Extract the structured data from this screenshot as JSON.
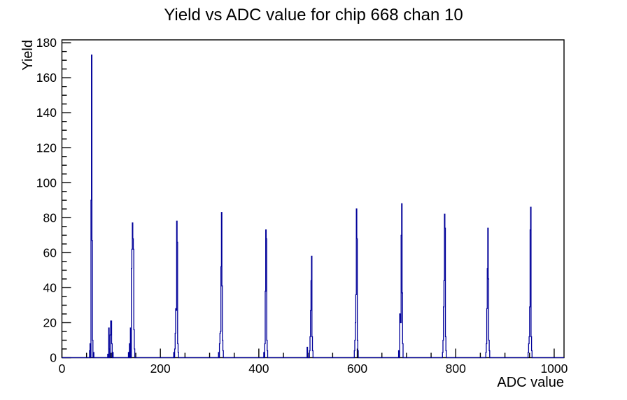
{
  "chart_data": {
    "type": "bar",
    "title": "Yield vs ADC value for chip 668 chan 10",
    "xlabel": "ADC value",
    "ylabel": "Yield",
    "xlim": [
      0,
      1020
    ],
    "ylim": [
      0,
      181.65
    ],
    "x_major_ticks": [
      0,
      200,
      400,
      600,
      800,
      1000
    ],
    "x_tick_labels": [
      "0",
      "200",
      "400",
      "600",
      "800",
      "1000"
    ],
    "x_minor_tick_step": 50,
    "y_major_ticks": [
      0,
      20,
      40,
      60,
      80,
      100,
      120,
      140,
      160,
      180
    ],
    "y_tick_labels": [
      "0",
      "20",
      "40",
      "60",
      "80",
      "100",
      "120",
      "140",
      "160",
      "180"
    ],
    "y_minor_tick_step": 5,
    "grid": false,
    "legend": false,
    "line_color": "#000099",
    "axis_color": "#000000",
    "bin_width": 1,
    "bins": [
      [
        56,
        4
      ],
      [
        57,
        8
      ],
      [
        59,
        90
      ],
      [
        60,
        173
      ],
      [
        61,
        67
      ],
      [
        62,
        10
      ],
      [
        64,
        3
      ],
      [
        93,
        2
      ],
      [
        95,
        17
      ],
      [
        96,
        5
      ],
      [
        98,
        13
      ],
      [
        99,
        21
      ],
      [
        100,
        21
      ],
      [
        101,
        8
      ],
      [
        103,
        3
      ],
      [
        135,
        3
      ],
      [
        137,
        8
      ],
      [
        139,
        17
      ],
      [
        141,
        51
      ],
      [
        142,
        62
      ],
      [
        143,
        77
      ],
      [
        144,
        68
      ],
      [
        145,
        62
      ],
      [
        146,
        16
      ],
      [
        147,
        5
      ],
      [
        227,
        3
      ],
      [
        229,
        5
      ],
      [
        230,
        14
      ],
      [
        231,
        28
      ],
      [
        232,
        27
      ],
      [
        233,
        78
      ],
      [
        234,
        66
      ],
      [
        235,
        8
      ],
      [
        236,
        3
      ],
      [
        318,
        3
      ],
      [
        320,
        8
      ],
      [
        321,
        14
      ],
      [
        322,
        15
      ],
      [
        323,
        52
      ],
      [
        324,
        83
      ],
      [
        325,
        41
      ],
      [
        326,
        10
      ],
      [
        327,
        4
      ],
      [
        410,
        3
      ],
      [
        412,
        8
      ],
      [
        413,
        38
      ],
      [
        414,
        73
      ],
      [
        415,
        68
      ],
      [
        416,
        10
      ],
      [
        417,
        4
      ],
      [
        498,
        6
      ],
      [
        503,
        4
      ],
      [
        504,
        12
      ],
      [
        505,
        27
      ],
      [
        506,
        44
      ],
      [
        507,
        58
      ],
      [
        508,
        12
      ],
      [
        509,
        4
      ],
      [
        594,
        4
      ],
      [
        595,
        10
      ],
      [
        596,
        20
      ],
      [
        597,
        36
      ],
      [
        598,
        85
      ],
      [
        599,
        68
      ],
      [
        600,
        10
      ],
      [
        601,
        4
      ],
      [
        684,
        4
      ],
      [
        686,
        25
      ],
      [
        687,
        25
      ],
      [
        688,
        20
      ],
      [
        689,
        70
      ],
      [
        690,
        88
      ],
      [
        691,
        37
      ],
      [
        692,
        8
      ],
      [
        773,
        3
      ],
      [
        774,
        10
      ],
      [
        775,
        29
      ],
      [
        776,
        44
      ],
      [
        777,
        82
      ],
      [
        778,
        74
      ],
      [
        779,
        12
      ],
      [
        780,
        4
      ],
      [
        861,
        3
      ],
      [
        862,
        8
      ],
      [
        863,
        28
      ],
      [
        864,
        51
      ],
      [
        865,
        74
      ],
      [
        866,
        45
      ],
      [
        867,
        10
      ],
      [
        868,
        4
      ],
      [
        947,
        3
      ],
      [
        948,
        8
      ],
      [
        949,
        12
      ],
      [
        950,
        29
      ],
      [
        951,
        73
      ],
      [
        952,
        86
      ],
      [
        953,
        12
      ],
      [
        954,
        4
      ]
    ]
  }
}
